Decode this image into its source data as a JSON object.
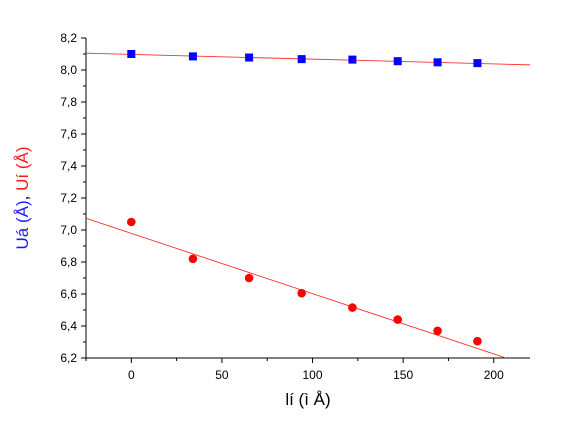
{
  "chart_data": {
    "type": "scatter",
    "title": "",
    "xlabel": "lí  (ì Å)",
    "ylabel_parts": [
      {
        "text": "Uá (Å)",
        "color": "#1a1aff"
      },
      {
        "text": ", ",
        "color": "#000000"
      },
      {
        "text": "Uí (Å)",
        "color": "#ff1a1a"
      }
    ],
    "xlim": [
      -25,
      220
    ],
    "ylim": [
      6.2,
      8.2
    ],
    "x_ticks": [
      0,
      50,
      100,
      150,
      200
    ],
    "x_tick_labels": [
      "0",
      "50",
      "100",
      "150",
      "200"
    ],
    "y_ticks": [
      6.2,
      6.4,
      6.6,
      6.8,
      7.0,
      7.2,
      7.4,
      7.6,
      7.8,
      8.0,
      8.2
    ],
    "y_tick_labels": [
      "6,2",
      "6,4",
      "6,6",
      "6,8",
      "7,0",
      "7,2",
      "7,4",
      "7,6",
      "7,8",
      "8,0",
      "8,2"
    ],
    "grid": false,
    "series": [
      {
        "marker": "square",
        "color": "#0000ff",
        "x": [
          0,
          34,
          65,
          94,
          122,
          147,
          169,
          191
        ],
        "y": [
          8.1,
          8.085,
          8.078,
          8.068,
          8.065,
          8.055,
          8.048,
          8.043
        ]
      },
      {
        "marker": "circle",
        "color": "#ff0000",
        "x": [
          0,
          34,
          65,
          94,
          122,
          147,
          169,
          191
        ],
        "y": [
          7.05,
          6.82,
          6.7,
          6.605,
          6.515,
          6.44,
          6.37,
          6.305
        ]
      }
    ],
    "fit_lines": [
      {
        "color": "#ff3030",
        "x": [
          -25,
          220
        ],
        "y": [
          8.105,
          8.032
        ]
      },
      {
        "color": "#ff3030",
        "x": [
          -25,
          210
        ],
        "y": [
          7.073,
          6.188
        ]
      }
    ]
  }
}
